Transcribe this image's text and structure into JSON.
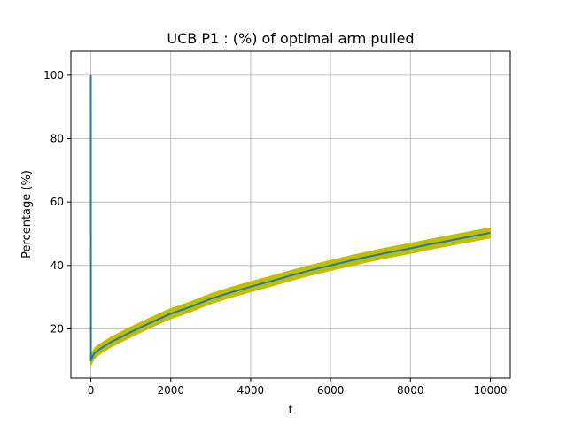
{
  "chart_data": {
    "type": "line",
    "title": "UCB P1 : (%) of optimal arm pulled",
    "xlabel": "t",
    "ylabel": "Percentage (%)",
    "xlim": [
      -500,
      10500
    ],
    "ylim": [
      4.5,
      107.5
    ],
    "xticks": [
      0,
      2000,
      4000,
      6000,
      8000,
      10000
    ],
    "yticks": [
      20,
      40,
      60,
      80,
      100
    ],
    "grid": true,
    "colors": {
      "line": "#1f77b4",
      "band": "#bfbf00",
      "grid": "#b0b0b0"
    },
    "series": [
      {
        "x": [
          0,
          1,
          50,
          100,
          300,
          500,
          1000,
          1500,
          2000,
          2500,
          3000,
          3500,
          4000,
          4500,
          5000,
          5500,
          6000,
          6500,
          7000,
          7500,
          8000,
          8500,
          9000,
          9500,
          10000
        ],
        "values": [
          100,
          10,
          11.5,
          12.5,
          14.3,
          15.8,
          19.0,
          22.0,
          24.8,
          27.0,
          29.5,
          31.5,
          33.3,
          35.0,
          36.8,
          38.5,
          40.0,
          41.5,
          42.9,
          44.2,
          45.4,
          46.7,
          47.9,
          49.1,
          50.3
        ],
        "band_halfwidth": 1.6
      }
    ]
  }
}
